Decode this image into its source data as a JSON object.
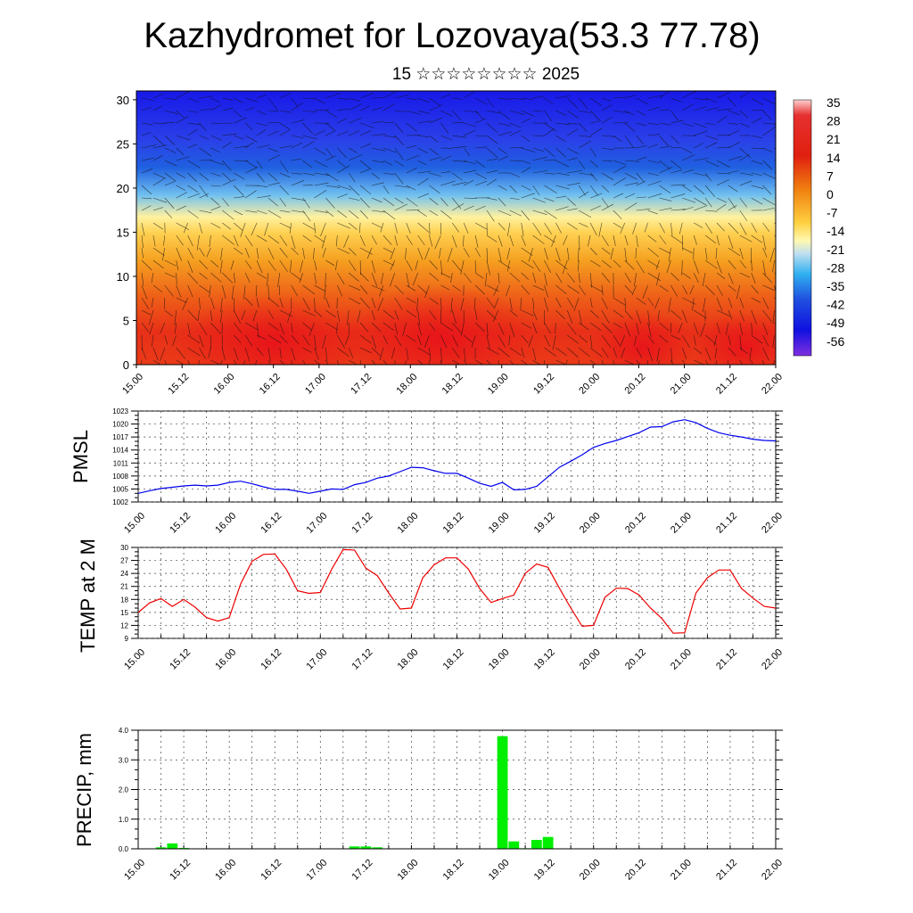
{
  "title": "Kazhydromet for Lozovaya(53.3 77.78)",
  "subtitle": "15 ☆☆☆☆☆☆☆☆ 2025",
  "x_ticks": [
    "15.00",
    "15.12",
    "16.00",
    "16.12",
    "17.00",
    "17.12",
    "18.00",
    "18.12",
    "19.00",
    "19.12",
    "20.00",
    "20.12",
    "21.00",
    "21.12",
    "22.00"
  ],
  "colors": {
    "pmsl_line": "#0000ee",
    "temp_line": "#ee0000",
    "precip_bar": "#00ee00"
  },
  "chart_data": [
    {
      "type": "heatmap",
      "xlabel": "",
      "ylabel": "",
      "x": [
        "15.00",
        "15.12",
        "16.00",
        "16.12",
        "17.00",
        "17.12",
        "18.00",
        "18.12",
        "19.00",
        "19.12",
        "20.00",
        "20.12",
        "21.00",
        "21.12",
        "22.00"
      ],
      "y_ticks": [
        0,
        5,
        10,
        15,
        20,
        25,
        30
      ],
      "ylim": [
        0,
        31
      ],
      "colorbar_labels": [
        "35",
        "28",
        "21",
        "14",
        "7",
        "0",
        "-7",
        "-14",
        "-21",
        "-28",
        "-35",
        "-42",
        "-49",
        "-56"
      ],
      "colorbar_range": [
        -63,
        42
      ],
      "description_of_field": "temperature with wind barbs",
      "profile_levels_km": [
        0,
        3,
        6,
        9,
        12,
        15,
        17,
        20,
        23,
        26,
        29,
        31
      ],
      "profile_values": [
        21,
        24,
        18,
        9,
        0,
        -10,
        -22,
        -38,
        -50,
        -58,
        -62,
        -63
      ]
    },
    {
      "type": "line",
      "ylabel": "PMSL",
      "ylim": [
        1002,
        1023
      ],
      "y_ticks": [
        1002,
        1005,
        1008,
        1011,
        1014,
        1017,
        1020,
        1023
      ],
      "x_hours": [
        0,
        3,
        6,
        9,
        12,
        15,
        18,
        21,
        24,
        27,
        30,
        33,
        36,
        39,
        42,
        45,
        48,
        51,
        54,
        57,
        60,
        63,
        66,
        69,
        72,
        75,
        78,
        81,
        84,
        87,
        90,
        93,
        96,
        99,
        102,
        105,
        108,
        111,
        114,
        117,
        120,
        123,
        126,
        129,
        132,
        135,
        138,
        141,
        144,
        147,
        150,
        153,
        156,
        159,
        162,
        165,
        168
      ],
      "values": [
        1004,
        1004.6,
        1005.1,
        1005.4,
        1005.7,
        1005.9,
        1005.7,
        1005.9,
        1006.5,
        1006.8,
        1006.2,
        1005.5,
        1004.9,
        1004.9,
        1004.5,
        1004,
        1004.5,
        1005,
        1004.9,
        1006,
        1006.5,
        1007.5,
        1008,
        1009,
        1010,
        1009.9,
        1009.2,
        1008.6,
        1008.6,
        1007.5,
        1006.3,
        1005.6,
        1006.5,
        1004.8,
        1004.9,
        1005.6,
        1007.8,
        1010,
        1011.4,
        1012.9,
        1014.6,
        1015.5,
        1016.2,
        1017.1,
        1018,
        1019.3,
        1019.4,
        1020.5,
        1021,
        1020.3,
        1019,
        1018,
        1017.4,
        1017,
        1016.5,
        1016.2,
        1016.1
      ]
    },
    {
      "type": "line",
      "ylabel": "TEMP at 2 M",
      "ylim": [
        9,
        30
      ],
      "y_ticks": [
        9,
        12,
        15,
        18,
        21,
        24,
        27,
        30
      ],
      "x_hours": [
        0,
        3,
        6,
        9,
        12,
        15,
        18,
        21,
        24,
        27,
        30,
        33,
        36,
        39,
        42,
        45,
        48,
        51,
        54,
        57,
        60,
        63,
        66,
        69,
        72,
        75,
        78,
        81,
        84,
        87,
        90,
        93,
        96,
        99,
        102,
        105,
        108,
        111,
        114,
        117,
        120,
        123,
        126,
        129,
        132,
        135,
        138,
        141,
        144,
        147,
        150,
        153,
        156,
        159,
        162,
        165,
        168
      ],
      "values": [
        15,
        17.2,
        18.2,
        16.4,
        18,
        16.2,
        13.8,
        13,
        13.8,
        21.6,
        26.8,
        28.4,
        28.5,
        25,
        20,
        19.4,
        19.6,
        25,
        29.5,
        29.4,
        25.2,
        23.5,
        19.5,
        15.8,
        16,
        23,
        26,
        27.6,
        27.6,
        25,
        20.5,
        17.3,
        18.2,
        19,
        24,
        26.2,
        25.4,
        20.6,
        16,
        11.8,
        12,
        18.5,
        20.6,
        20.5,
        19,
        16,
        13.6,
        10.2,
        10.3,
        19.5,
        23,
        24.8,
        24.8,
        20.5,
        18.3,
        16.4,
        16
      ]
    },
    {
      "type": "bar",
      "ylabel": "PRECIP, mm",
      "ylim": [
        0,
        4
      ],
      "y_ticks": [
        "0.0",
        "1.0",
        "2.0",
        "3.0",
        "4.0"
      ],
      "x_hours": [
        6,
        9,
        12,
        57,
        60,
        63,
        96,
        99,
        102,
        105,
        108
      ],
      "values": [
        0.05,
        0.18,
        0.03,
        0.08,
        0.08,
        0.05,
        3.8,
        0.25,
        0.02,
        0.3,
        0.4
      ]
    }
  ]
}
